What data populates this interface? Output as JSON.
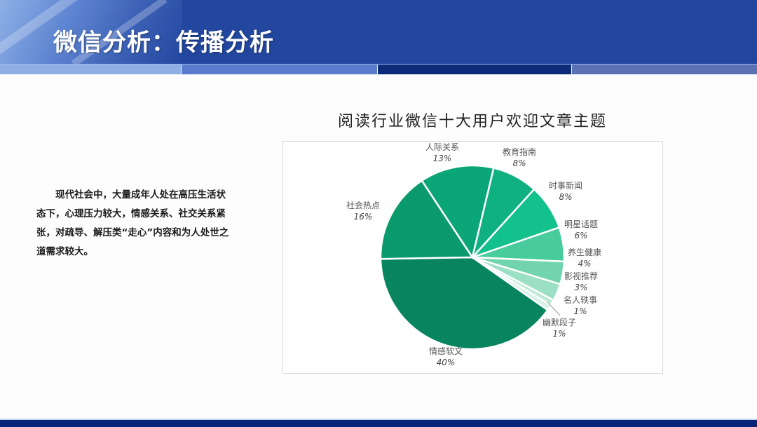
{
  "header": {
    "title": "微信分析：传播分析"
  },
  "body_text": "现代社会中，大量成年人处在高压生活状态下，心理压力较大，情感关系、社交关系紧张，对疏导、解压类“走心”内容和为人处世之道需求较大。",
  "chart_data": {
    "type": "pie",
    "title": "阅读行业微信十大用户欢迎文章主题",
    "categories": [
      "情感软文",
      "社会热点",
      "人际关系",
      "教育指南",
      "时事新闻",
      "明星话题",
      "养生健康",
      "影视推荐",
      "名人轶事",
      "幽默段子"
    ],
    "values": [
      40,
      16,
      13,
      8,
      8,
      6,
      4,
      3,
      1,
      1
    ],
    "labels": [
      "40%",
      "16%",
      "13%",
      "8%",
      "8%",
      "6%",
      "4%",
      "3%",
      "1%",
      "1%"
    ],
    "colors": [
      "#08845e",
      "#0a9a6c",
      "#0aa677",
      "#0fb180",
      "#12c18c",
      "#48cc9e",
      "#71d4af",
      "#9bdfc4",
      "#bfe9d7",
      "#d6f2e6"
    ],
    "legend": "none",
    "data_labels": "outside, category name and percent"
  }
}
